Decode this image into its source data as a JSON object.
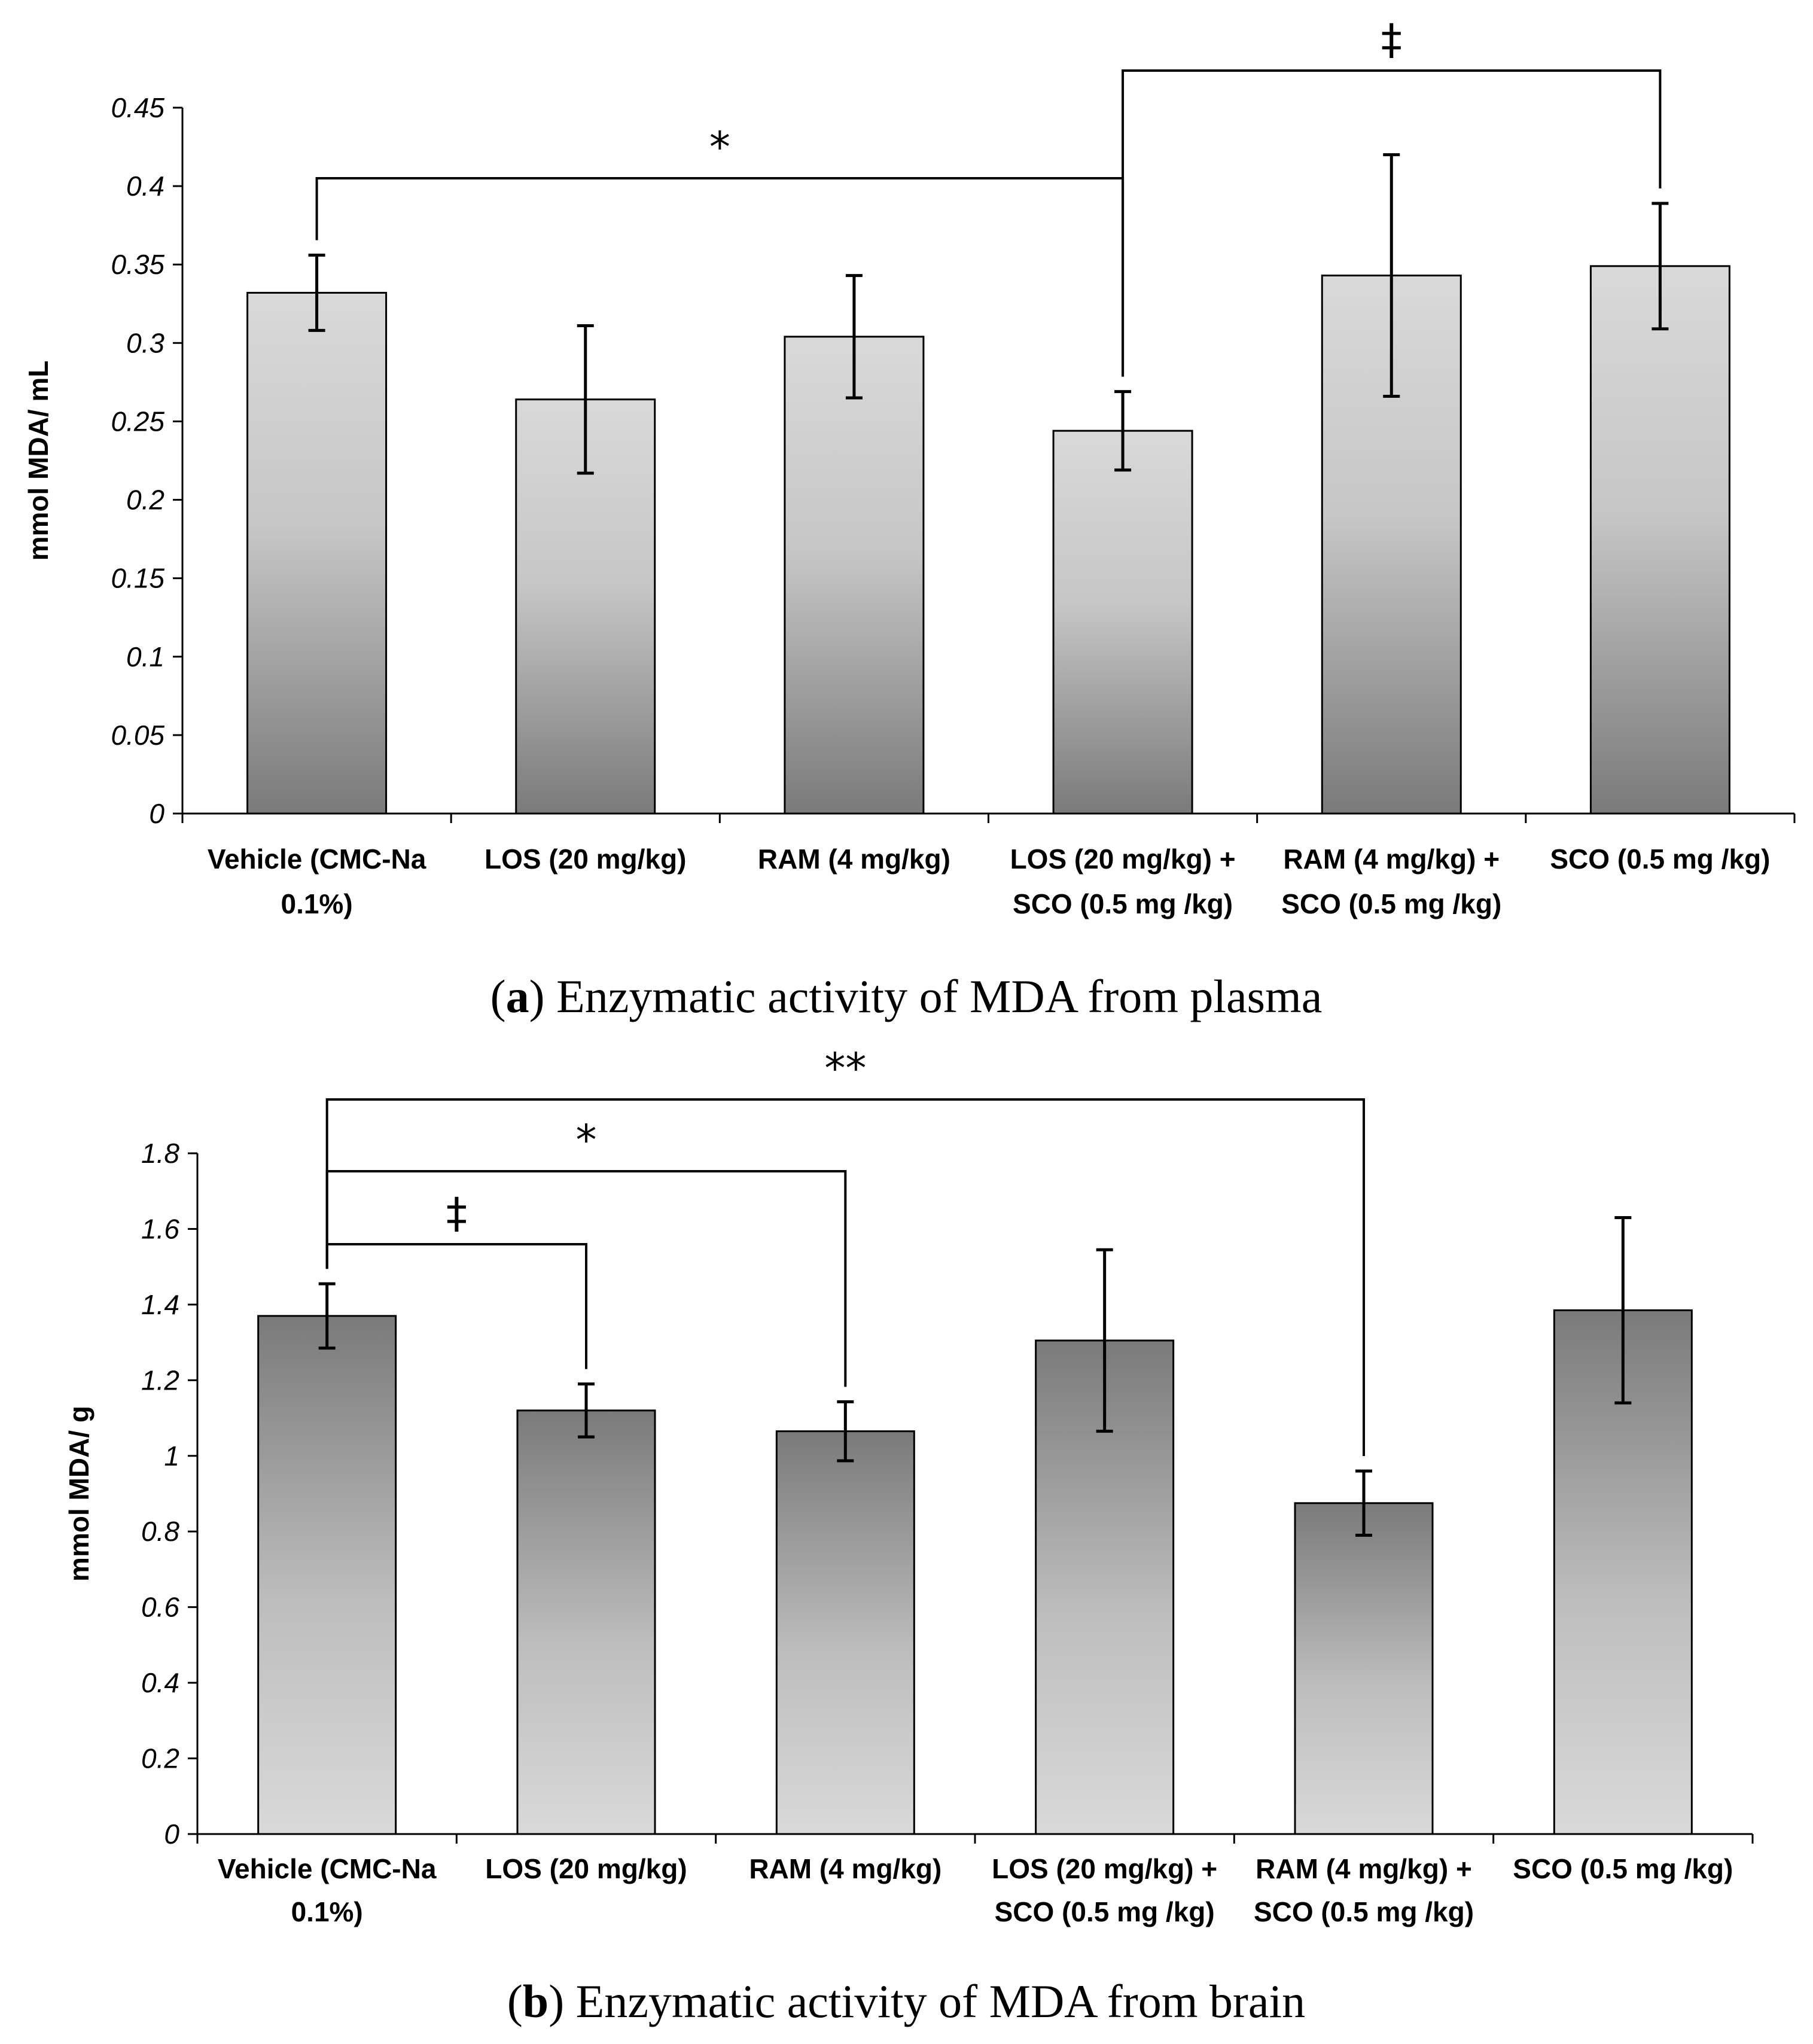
{
  "chart_data": [
    {
      "type": "bar",
      "title": "Enzymatic activity of MDA from plasma",
      "panel_letter": "a",
      "caption_text": " Enzymatic activity of MDA from plasma",
      "ylabel": "mmol MDA/ mL",
      "xlabel": "",
      "ylim": [
        0,
        0.45
      ],
      "yticks": [
        0,
        0.05,
        0.1,
        0.15,
        0.2,
        0.25,
        0.3,
        0.35,
        0.4,
        0.45
      ],
      "ytick_labels": [
        "0",
        "0.05",
        "0.1",
        "0.15",
        "0.2",
        "0.25",
        "0.3",
        "0.35",
        "0.4",
        "0.45"
      ],
      "categories": [
        [
          "Vehicle (CMC-Na",
          "0.1%)"
        ],
        [
          "LOS (20 mg/kg)"
        ],
        [
          "RAM (4 mg/kg)"
        ],
        [
          "LOS (20 mg/kg) +",
          "SCO (0.5 mg /kg)"
        ],
        [
          "RAM (4 mg/kg) +",
          "SCO (0.5 mg /kg)"
        ],
        [
          "SCO (0.5 mg /kg)"
        ]
      ],
      "values": [
        0.332,
        0.264,
        0.304,
        0.244,
        0.343,
        0.349
      ],
      "errors": [
        0.024,
        0.047,
        0.039,
        0.025,
        0.077,
        0.04
      ],
      "bar_gradient": "light-top",
      "significance": [
        {
          "from": 0,
          "to": 3,
          "label": "*"
        },
        {
          "from": 3,
          "to": 5,
          "label": "‡"
        }
      ]
    },
    {
      "type": "bar",
      "title": "Enzymatic activity of MDA from brain",
      "panel_letter": "b",
      "caption_text": " Enzymatic activity of MDA from brain",
      "ylabel": "mmol MDA/ g",
      "xlabel": "",
      "ylim": [
        0,
        1.8
      ],
      "yticks": [
        0,
        0.2,
        0.4,
        0.6,
        0.8,
        1,
        1.2,
        1.4,
        1.6,
        1.8
      ],
      "ytick_labels": [
        "0",
        "0.2",
        "0.4",
        "0.6",
        "0.8",
        "1",
        "1.2",
        "1.4",
        "1.6",
        "1.8"
      ],
      "categories": [
        [
          "Vehicle (CMC-Na",
          "0.1%)"
        ],
        [
          "LOS (20 mg/kg)"
        ],
        [
          "RAM (4 mg/kg)"
        ],
        [
          "LOS (20 mg/kg) +",
          "SCO (0.5 mg /kg)"
        ],
        [
          "RAM (4 mg/kg) +",
          "SCO (0.5 mg /kg)"
        ],
        [
          "SCO (0.5 mg /kg)"
        ]
      ],
      "values": [
        1.37,
        1.12,
        1.065,
        1.305,
        0.875,
        1.385
      ],
      "errors": [
        0.085,
        0.07,
        0.078,
        0.24,
        0.085,
        0.245
      ],
      "bar_gradient": "dark-top",
      "significance": [
        {
          "from": 0,
          "to": 1,
          "label": "‡"
        },
        {
          "from": 0,
          "to": 2,
          "label": "*"
        },
        {
          "from": 0,
          "to": 4,
          "label": "**"
        }
      ]
    }
  ]
}
